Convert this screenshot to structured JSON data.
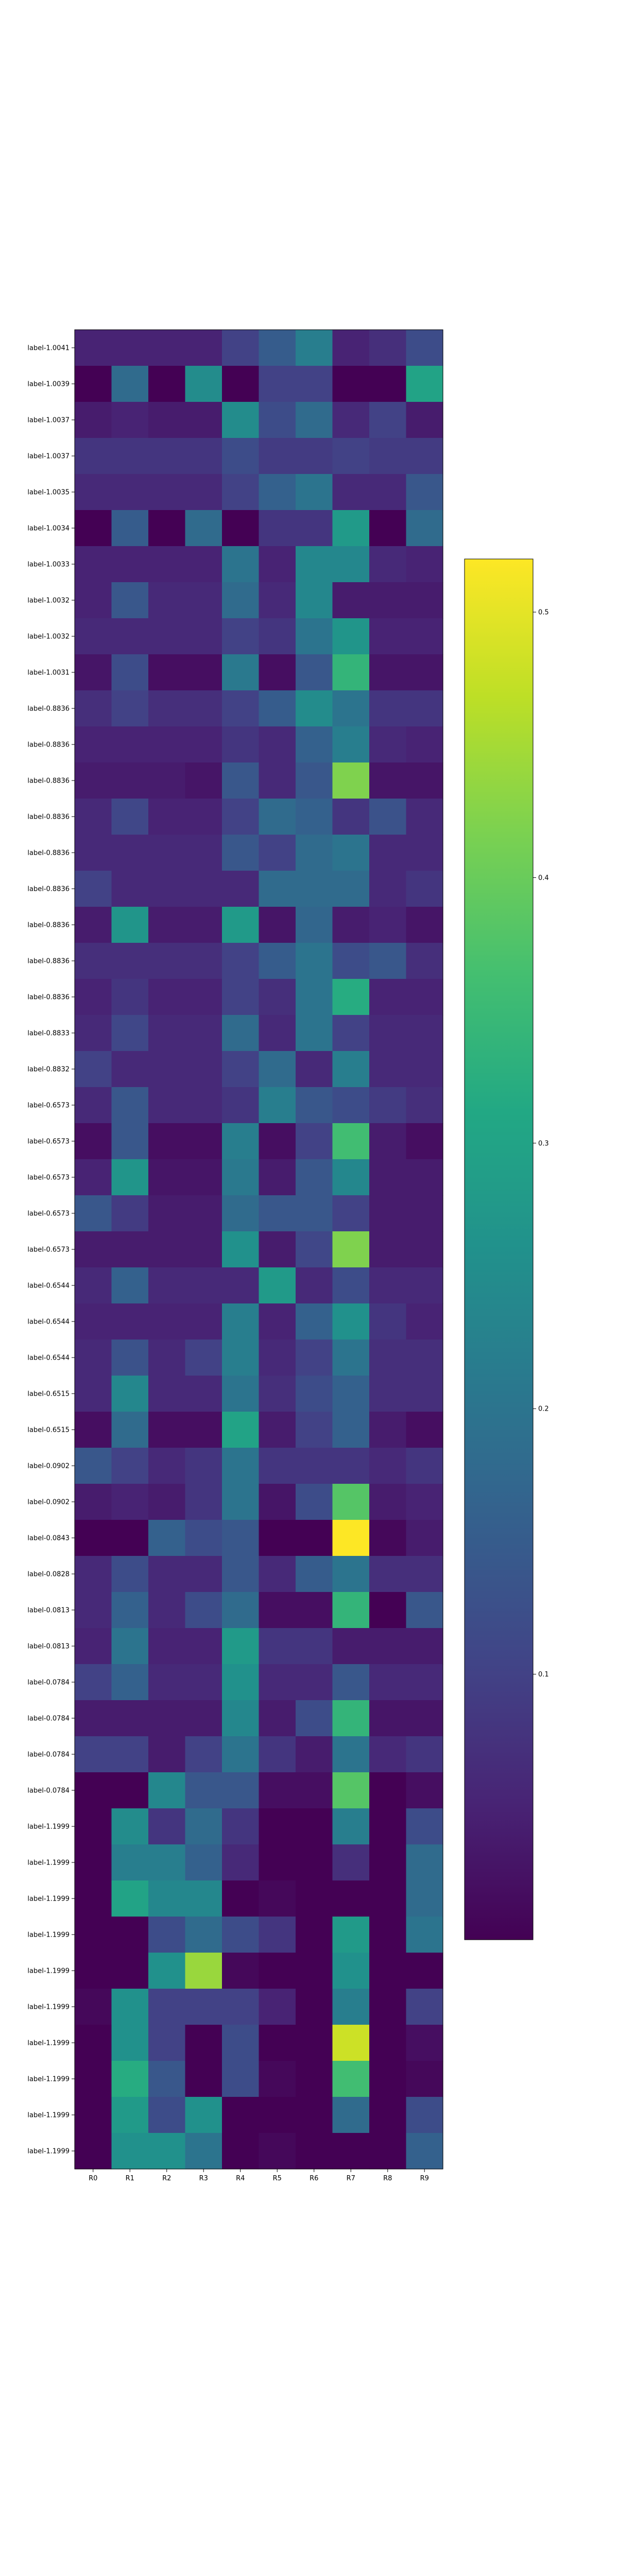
{
  "chart_data": {
    "type": "heatmap",
    "title": "",
    "xlabel": "",
    "ylabel": "",
    "columns": [
      "R0",
      "R1",
      "R2",
      "R3",
      "R4",
      "R5",
      "R6",
      "R7",
      "R8",
      "R9"
    ],
    "rows": [
      "label-1.0041",
      "label-1.0039",
      "label-1.0037",
      "label-1.0037",
      "label-1.0035",
      "label-1.0034",
      "label-1.0033",
      "label-1.0032",
      "label-1.0032",
      "label-1.0031",
      "label-0.8836",
      "label-0.8836",
      "label-0.8836",
      "label-0.8836",
      "label-0.8836",
      "label-0.8836",
      "label-0.8836",
      "label-0.8836",
      "label-0.8836",
      "label-0.8833",
      "label-0.8832",
      "label-0.6573",
      "label-0.6573",
      "label-0.6573",
      "label-0.6573",
      "label-0.6573",
      "label-0.6544",
      "label-0.6544",
      "label-0.6544",
      "label-0.6515",
      "label-0.6515",
      "label-0.0902",
      "label-0.0902",
      "label-0.0843",
      "label-0.0828",
      "label-0.0813",
      "label-0.0813",
      "label-0.0784",
      "label-0.0784",
      "label-0.0784",
      "label-0.0784",
      "label-1.1999",
      "label-1.1999",
      "label-1.1999",
      "label-1.1999",
      "label-1.1999",
      "label-1.1999",
      "label-1.1999",
      "label-1.1999",
      "label-1.1999",
      "label-1.1999"
    ],
    "values": [
      [
        0.05,
        0.05,
        0.05,
        0.05,
        0.1,
        0.15,
        0.22,
        0.05,
        0.07,
        0.12
      ],
      [
        0.0,
        0.18,
        0.0,
        0.25,
        0.0,
        0.1,
        0.1,
        0.0,
        0.0,
        0.3
      ],
      [
        0.04,
        0.05,
        0.04,
        0.04,
        0.25,
        0.12,
        0.18,
        0.06,
        0.1,
        0.04
      ],
      [
        0.08,
        0.08,
        0.08,
        0.08,
        0.12,
        0.09,
        0.09,
        0.1,
        0.09,
        0.09
      ],
      [
        0.06,
        0.06,
        0.06,
        0.06,
        0.1,
        0.16,
        0.2,
        0.06,
        0.06,
        0.14
      ],
      [
        0.0,
        0.15,
        0.0,
        0.18,
        0.0,
        0.08,
        0.08,
        0.28,
        0.0,
        0.18
      ],
      [
        0.05,
        0.05,
        0.05,
        0.05,
        0.2,
        0.05,
        0.24,
        0.24,
        0.06,
        0.05
      ],
      [
        0.05,
        0.14,
        0.06,
        0.06,
        0.18,
        0.06,
        0.24,
        0.04,
        0.04,
        0.04
      ],
      [
        0.06,
        0.06,
        0.06,
        0.06,
        0.1,
        0.08,
        0.2,
        0.27,
        0.05,
        0.05
      ],
      [
        0.03,
        0.12,
        0.02,
        0.02,
        0.21,
        0.02,
        0.14,
        0.34,
        0.03,
        0.03
      ],
      [
        0.07,
        0.1,
        0.07,
        0.07,
        0.1,
        0.15,
        0.25,
        0.2,
        0.08,
        0.08
      ],
      [
        0.05,
        0.05,
        0.05,
        0.05,
        0.08,
        0.06,
        0.16,
        0.22,
        0.06,
        0.05
      ],
      [
        0.04,
        0.04,
        0.04,
        0.03,
        0.14,
        0.06,
        0.14,
        0.42,
        0.03,
        0.03
      ],
      [
        0.06,
        0.11,
        0.05,
        0.05,
        0.1,
        0.18,
        0.16,
        0.08,
        0.13,
        0.06
      ],
      [
        0.06,
        0.06,
        0.06,
        0.06,
        0.14,
        0.1,
        0.18,
        0.2,
        0.06,
        0.06
      ],
      [
        0.1,
        0.06,
        0.06,
        0.06,
        0.06,
        0.18,
        0.18,
        0.18,
        0.06,
        0.08
      ],
      [
        0.04,
        0.27,
        0.04,
        0.04,
        0.28,
        0.03,
        0.17,
        0.04,
        0.05,
        0.03
      ],
      [
        0.07,
        0.07,
        0.07,
        0.07,
        0.1,
        0.15,
        0.2,
        0.12,
        0.14,
        0.07
      ],
      [
        0.05,
        0.08,
        0.05,
        0.05,
        0.1,
        0.07,
        0.2,
        0.32,
        0.05,
        0.05
      ],
      [
        0.06,
        0.11,
        0.06,
        0.06,
        0.18,
        0.06,
        0.2,
        0.1,
        0.06,
        0.06
      ],
      [
        0.1,
        0.06,
        0.06,
        0.06,
        0.1,
        0.18,
        0.06,
        0.22,
        0.06,
        0.06
      ],
      [
        0.06,
        0.14,
        0.06,
        0.06,
        0.08,
        0.22,
        0.14,
        0.12,
        0.09,
        0.07
      ],
      [
        0.02,
        0.14,
        0.02,
        0.02,
        0.22,
        0.02,
        0.1,
        0.36,
        0.04,
        0.02
      ],
      [
        0.05,
        0.27,
        0.03,
        0.03,
        0.21,
        0.04,
        0.14,
        0.24,
        0.04,
        0.04
      ],
      [
        0.14,
        0.09,
        0.04,
        0.04,
        0.18,
        0.14,
        0.14,
        0.1,
        0.04,
        0.04
      ],
      [
        0.04,
        0.04,
        0.04,
        0.04,
        0.26,
        0.04,
        0.11,
        0.42,
        0.04,
        0.04
      ],
      [
        0.06,
        0.16,
        0.06,
        0.06,
        0.06,
        0.28,
        0.06,
        0.12,
        0.06,
        0.06
      ],
      [
        0.05,
        0.05,
        0.05,
        0.05,
        0.22,
        0.05,
        0.16,
        0.26,
        0.08,
        0.05
      ],
      [
        0.06,
        0.13,
        0.06,
        0.1,
        0.22,
        0.06,
        0.1,
        0.2,
        0.07,
        0.07
      ],
      [
        0.06,
        0.24,
        0.06,
        0.06,
        0.2,
        0.07,
        0.12,
        0.16,
        0.07,
        0.07
      ],
      [
        0.02,
        0.18,
        0.02,
        0.02,
        0.3,
        0.04,
        0.1,
        0.16,
        0.04,
        0.02
      ],
      [
        0.14,
        0.1,
        0.06,
        0.08,
        0.2,
        0.08,
        0.08,
        0.08,
        0.06,
        0.08
      ],
      [
        0.04,
        0.05,
        0.04,
        0.08,
        0.2,
        0.03,
        0.12,
        0.38,
        0.04,
        0.05
      ],
      [
        0.0,
        0.0,
        0.16,
        0.12,
        0.14,
        0.0,
        0.0,
        0.52,
        0.01,
        0.04
      ],
      [
        0.06,
        0.12,
        0.06,
        0.06,
        0.14,
        0.06,
        0.15,
        0.2,
        0.07,
        0.07
      ],
      [
        0.06,
        0.16,
        0.06,
        0.12,
        0.18,
        0.02,
        0.02,
        0.34,
        0.0,
        0.14
      ],
      [
        0.05,
        0.2,
        0.05,
        0.05,
        0.28,
        0.08,
        0.08,
        0.04,
        0.04,
        0.04
      ],
      [
        0.1,
        0.16,
        0.06,
        0.06,
        0.26,
        0.06,
        0.06,
        0.14,
        0.06,
        0.06
      ],
      [
        0.04,
        0.04,
        0.04,
        0.04,
        0.24,
        0.04,
        0.12,
        0.34,
        0.03,
        0.03
      ],
      [
        0.1,
        0.1,
        0.04,
        0.1,
        0.2,
        0.08,
        0.04,
        0.2,
        0.06,
        0.08
      ],
      [
        0.0,
        0.0,
        0.24,
        0.14,
        0.14,
        0.02,
        0.02,
        0.38,
        0.0,
        0.02
      ],
      [
        0.0,
        0.25,
        0.08,
        0.18,
        0.08,
        0.0,
        0.0,
        0.22,
        0.0,
        0.12
      ],
      [
        0.0,
        0.22,
        0.22,
        0.16,
        0.06,
        0.0,
        0.0,
        0.07,
        0.0,
        0.18
      ],
      [
        0.0,
        0.3,
        0.24,
        0.24,
        0.0,
        0.01,
        0.0,
        0.0,
        0.0,
        0.18
      ],
      [
        0.0,
        0.0,
        0.12,
        0.18,
        0.12,
        0.08,
        0.0,
        0.28,
        0.0,
        0.2
      ],
      [
        0.0,
        0.0,
        0.26,
        0.44,
        0.01,
        0.0,
        0.0,
        0.26,
        0.0,
        0.0
      ],
      [
        0.01,
        0.26,
        0.1,
        0.1,
        0.1,
        0.05,
        0.0,
        0.22,
        0.0,
        0.1
      ],
      [
        0.0,
        0.26,
        0.1,
        0.0,
        0.12,
        0.0,
        0.0,
        0.48,
        0.0,
        0.02
      ],
      [
        0.0,
        0.32,
        0.14,
        0.0,
        0.12,
        0.01,
        0.0,
        0.36,
        0.0,
        0.01
      ],
      [
        0.0,
        0.28,
        0.12,
        0.26,
        0.0,
        0.0,
        0.0,
        0.18,
        0.0,
        0.12
      ],
      [
        0.0,
        0.26,
        0.26,
        0.2,
        0.0,
        0.01,
        0.0,
        0.0,
        0.0,
        0.16
      ]
    ],
    "colormap": "viridis",
    "vmin": 0.0,
    "vmax": 0.52,
    "colorbar_ticks": [
      0.1,
      0.2,
      0.3,
      0.4,
      0.5
    ],
    "colorbar_tick_labels": [
      "0.1",
      "0.2",
      "0.3",
      "0.4",
      "0.5"
    ]
  }
}
